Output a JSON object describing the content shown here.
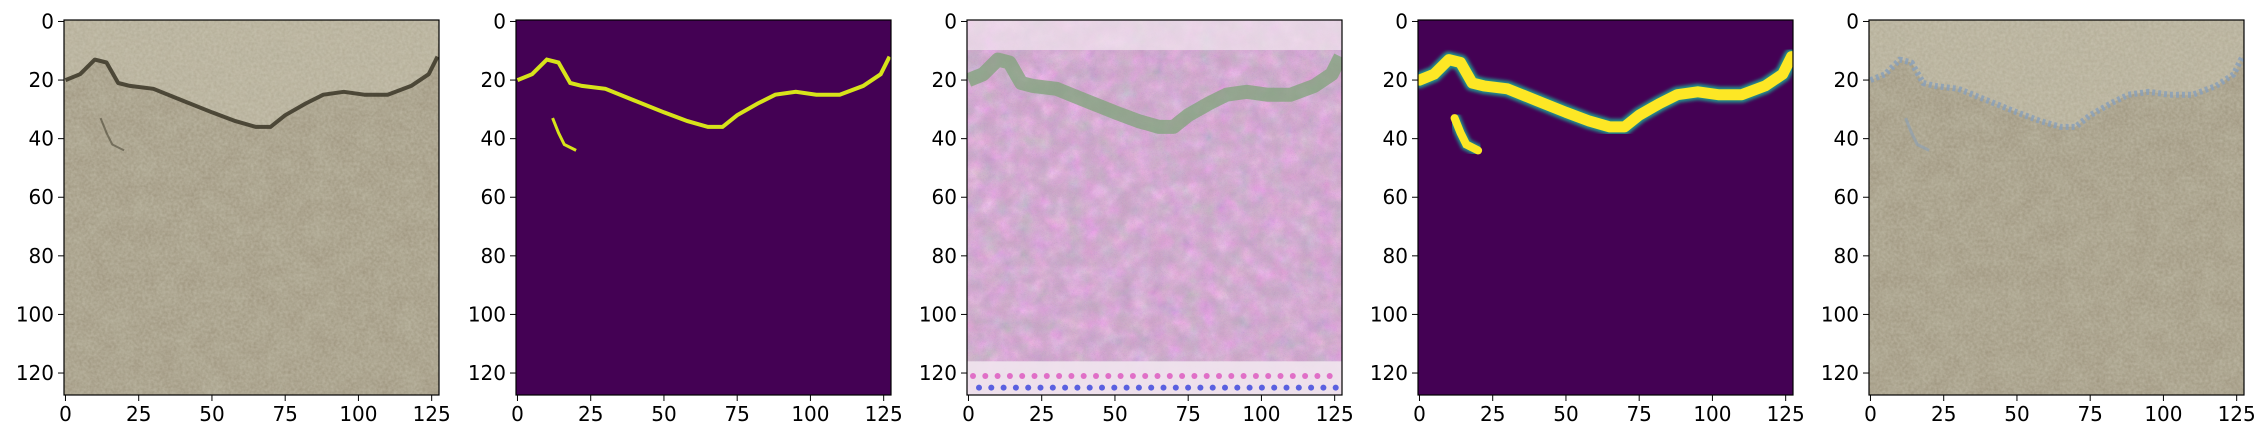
{
  "panels": [
    {
      "id": "original-photo",
      "kind": "photo",
      "colors": {
        "base": "#9c937c",
        "light": "#b7b09b",
        "dark": "#6f6a4f",
        "crack": "#3a3526"
      },
      "xticks": [
        "0",
        "25",
        "50",
        "75",
        "100",
        "125"
      ],
      "yticks": [
        "0",
        "20",
        "40",
        "60",
        "80",
        "100",
        "120"
      ]
    },
    {
      "id": "ground-truth-mask",
      "kind": "mask-thin",
      "colors": {
        "background": "#440154",
        "crack": "#d7e31a"
      },
      "xticks": [
        "0",
        "25",
        "50",
        "75",
        "100",
        "125"
      ],
      "yticks": [
        "0",
        "20",
        "40",
        "60",
        "80",
        "100",
        "120"
      ]
    },
    {
      "id": "generated-texture",
      "kind": "noise",
      "colors": {
        "base": "#c9a7c4",
        "pink": "#e06fc7",
        "green": "#7fa37a",
        "light": "#f1e6ee"
      },
      "xticks": [
        "0",
        "25",
        "50",
        "75",
        "100",
        "125"
      ],
      "yticks": [
        "0",
        "20",
        "40",
        "60",
        "80",
        "100",
        "120"
      ]
    },
    {
      "id": "predicted-mask",
      "kind": "mask-thick",
      "colors": {
        "background": "#440154",
        "crack": "#fde725",
        "edge": "#21918c"
      },
      "xticks": [
        "0",
        "25",
        "50",
        "75",
        "100",
        "125"
      ],
      "yticks": [
        "0",
        "20",
        "40",
        "60",
        "80",
        "100",
        "120"
      ]
    },
    {
      "id": "overlay-photo",
      "kind": "photo-overlay",
      "colors": {
        "base": "#9c937c",
        "light": "#b7b09b",
        "dark": "#6f6a4f",
        "overlay": "#8aa0b8"
      },
      "xticks": [
        "0",
        "25",
        "50",
        "75",
        "100",
        "125"
      ],
      "yticks": [
        "0",
        "20",
        "40",
        "60",
        "80",
        "100",
        "120"
      ]
    }
  ],
  "image_extent": {
    "xmin": -0.5,
    "xmax": 127.5,
    "ymin": -0.5,
    "ymax": 127.5
  },
  "crack_path": [
    [
      0,
      20
    ],
    [
      5,
      18
    ],
    [
      10,
      13
    ],
    [
      14,
      14
    ],
    [
      18,
      21
    ],
    [
      22,
      22
    ],
    [
      30,
      23
    ],
    [
      40,
      27
    ],
    [
      50,
      31
    ],
    [
      58,
      34
    ],
    [
      65,
      36
    ],
    [
      70,
      36
    ],
    [
      75,
      32
    ],
    [
      82,
      28
    ],
    [
      88,
      25
    ],
    [
      95,
      24
    ],
    [
      102,
      25
    ],
    [
      110,
      25
    ],
    [
      118,
      22
    ],
    [
      124,
      18
    ],
    [
      127,
      12
    ]
  ],
  "crack_branch": [
    [
      12,
      33
    ],
    [
      14,
      38
    ],
    [
      16,
      42
    ],
    [
      20,
      44
    ]
  ]
}
